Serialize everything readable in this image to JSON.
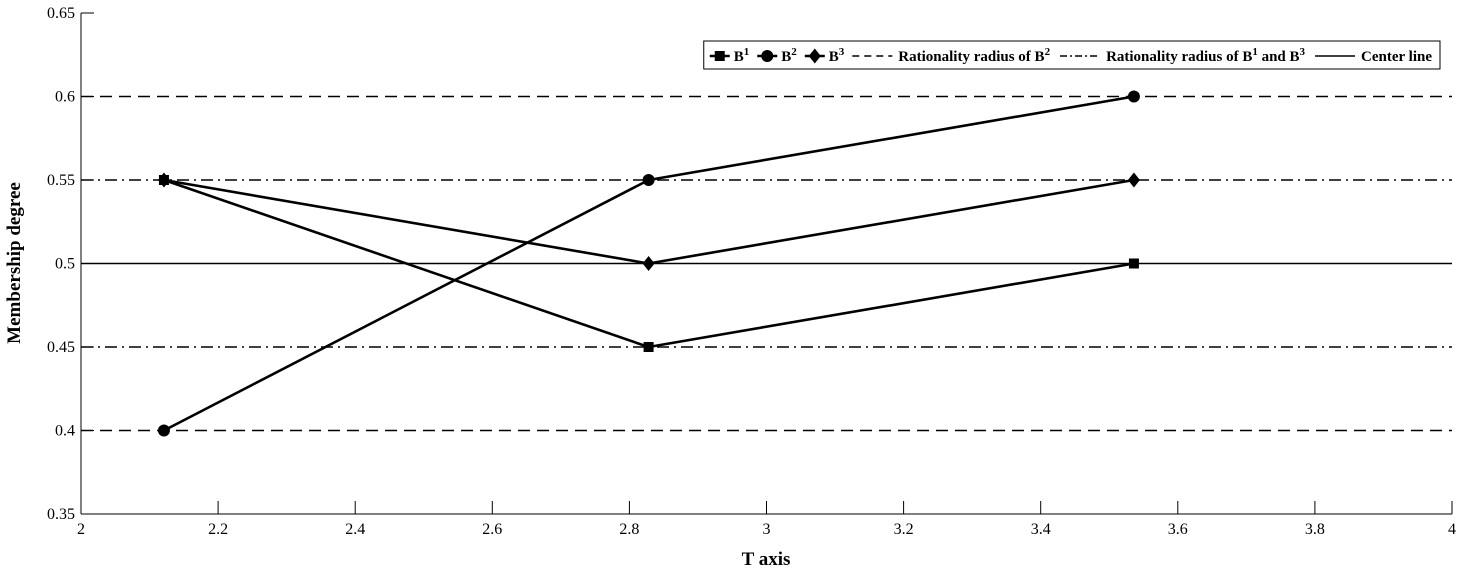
{
  "chart_data": {
    "type": "line",
    "xlabel": "T axis",
    "ylabel": "Membership degree",
    "xlim": [
      2,
      4
    ],
    "ylim": [
      0.35,
      0.65
    ],
    "xticks": [
      2,
      2.2,
      2.4,
      2.6,
      2.8,
      3,
      3.2,
      3.4,
      3.6,
      3.8,
      4
    ],
    "xtick_labels": [
      "2",
      "2.2",
      "2.4",
      "2.6",
      "2.8",
      "3",
      "3.2",
      "3.4",
      "3.6",
      "3.8",
      "4"
    ],
    "yticks": [
      0.35,
      0.4,
      0.45,
      0.5,
      0.55,
      0.6,
      0.65
    ],
    "ytick_labels": [
      "0.35",
      "0.4",
      "0.45",
      "0.5",
      "0.55",
      "0.6",
      "0.65"
    ],
    "grid": false,
    "legend_position": "top-right",
    "series": [
      {
        "name": "B",
        "sup": "1",
        "marker": "square",
        "x": [
          2.121,
          2.828,
          3.536
        ],
        "y": [
          0.55,
          0.45,
          0.5
        ]
      },
      {
        "name": "B",
        "sup": "2",
        "marker": "circle",
        "x": [
          2.121,
          2.828,
          3.536
        ],
        "y": [
          0.4,
          0.55,
          0.6
        ]
      },
      {
        "name": "B",
        "sup": "3",
        "marker": "diamond",
        "x": [
          2.121,
          2.828,
          3.536
        ],
        "y": [
          0.55,
          0.5,
          0.55
        ]
      }
    ],
    "reference_lines": [
      {
        "name": "Rationality radius of B",
        "sup": "2",
        "style": "dashed",
        "y_values": [
          0.4,
          0.6
        ]
      },
      {
        "name_parts": [
          "Rationality radius of B",
          "1",
          " and B",
          "3"
        ],
        "style": "dashdot",
        "y_values": [
          0.45,
          0.55
        ]
      },
      {
        "name": "Center line",
        "style": "solid",
        "y_values": [
          0.5
        ]
      }
    ],
    "line_color": "#000000"
  }
}
